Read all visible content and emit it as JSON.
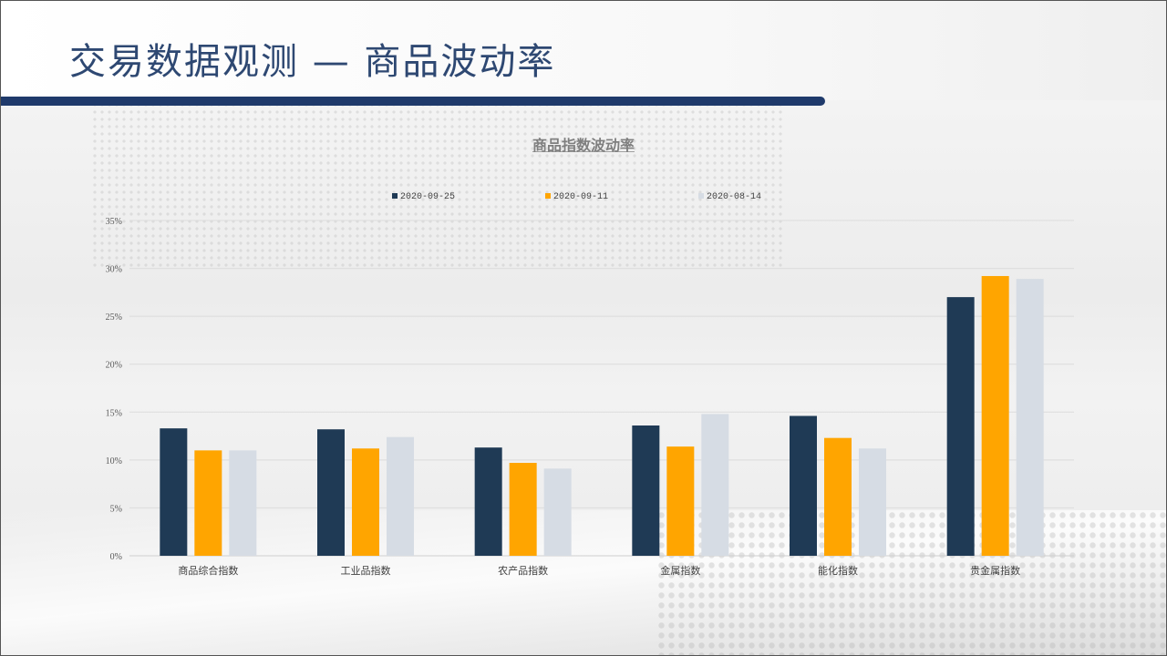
{
  "page_title": "交易数据观测 — 商品波动率",
  "colors": {
    "title": "#2e4872",
    "accent_bar": "#1f3a6b",
    "series": [
      "#1f3a55",
      "#ffa500",
      "#d6dce4"
    ]
  },
  "chart_data": {
    "type": "bar",
    "title": "商品指数波动率",
    "categories": [
      "商品综合指数",
      "工业品指数",
      "农产品指数",
      "金属指数",
      "能化指数",
      "贵金属指数"
    ],
    "series": [
      {
        "name": "2020-09-25",
        "values": [
          13.3,
          13.2,
          11.3,
          13.6,
          14.6,
          27.0
        ]
      },
      {
        "name": "2020-09-11",
        "values": [
          11.0,
          11.2,
          9.7,
          11.4,
          12.3,
          29.2
        ]
      },
      {
        "name": "2020-08-14",
        "values": [
          11.0,
          12.4,
          9.1,
          14.8,
          11.2,
          28.9
        ]
      }
    ],
    "ylim": [
      0,
      35
    ],
    "yticks": [
      "0%",
      "5%",
      "10%",
      "15%",
      "20%",
      "25%",
      "30%",
      "35%"
    ],
    "xlabel": "",
    "ylabel": "",
    "grid": true,
    "legend": "top"
  }
}
